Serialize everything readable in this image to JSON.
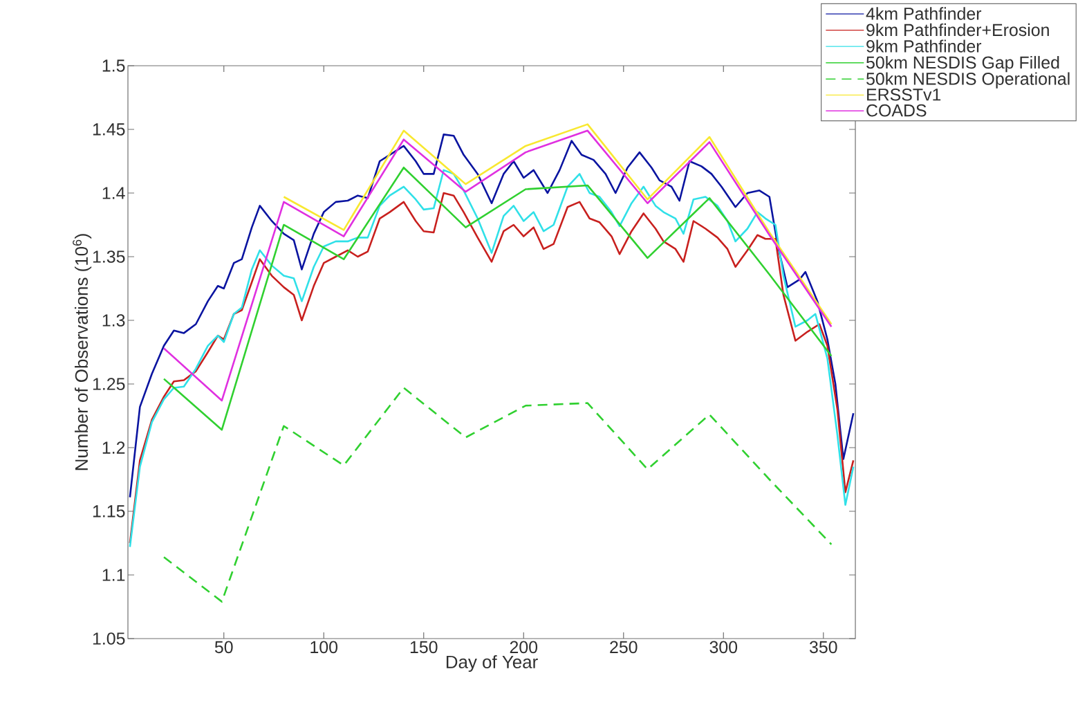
{
  "chart_data": {
    "type": "line",
    "xlabel": "Day of Year",
    "ylabel": "Number of Observations (10$^{6}$)",
    "xlim": [
      2,
      366
    ],
    "xticks": [
      50,
      100,
      150,
      200,
      250,
      300,
      350
    ],
    "ylim": [
      1.05,
      1.5
    ],
    "yticks": [
      1.05,
      1.1,
      1.15,
      1.2,
      1.25,
      1.3,
      1.35,
      1.4,
      1.45,
      1.5
    ],
    "legend": "top right",
    "series": [
      {
        "name": "4km Pathfinder",
        "color": "#0a14a0",
        "line_style": "solid",
        "x": [
          3,
          8,
          14,
          20,
          25,
          30,
          36,
          42,
          47,
          50,
          55,
          59,
          64,
          68,
          74,
          80,
          85,
          89,
          95,
          100,
          106,
          112,
          117,
          122,
          128,
          133,
          140,
          146,
          150,
          155,
          160,
          165,
          170,
          177,
          184,
          190,
          195,
          200,
          205,
          212,
          218,
          224,
          229,
          235,
          241,
          246,
          252,
          258,
          264,
          268,
          274,
          278,
          283,
          289,
          294,
          299,
          306,
          312,
          318,
          323,
          327,
          332,
          338,
          341,
          347,
          352,
          356,
          360,
          365
        ],
        "values": [
          1.161,
          1.232,
          1.258,
          1.28,
          1.292,
          1.29,
          1.297,
          1.315,
          1.327,
          1.325,
          1.345,
          1.348,
          1.373,
          1.39,
          1.378,
          1.368,
          1.363,
          1.34,
          1.368,
          1.385,
          1.393,
          1.394,
          1.398,
          1.396,
          1.425,
          1.43,
          1.437,
          1.425,
          1.415,
          1.415,
          1.446,
          1.445,
          1.43,
          1.415,
          1.392,
          1.415,
          1.425,
          1.412,
          1.418,
          1.4,
          1.418,
          1.441,
          1.43,
          1.426,
          1.415,
          1.4,
          1.42,
          1.432,
          1.42,
          1.41,
          1.405,
          1.394,
          1.425,
          1.421,
          1.415,
          1.405,
          1.389,
          1.4,
          1.402,
          1.397,
          1.36,
          1.326,
          1.332,
          1.338,
          1.315,
          1.285,
          1.25,
          1.191,
          1.227
        ]
      },
      {
        "name": "9km Pathfinder+Erosion",
        "color": "#c8201e",
        "line_style": "solid",
        "x": [
          3,
          8,
          14,
          20,
          25,
          30,
          36,
          42,
          47,
          50,
          55,
          59,
          64,
          68,
          74,
          80,
          85,
          89,
          95,
          100,
          106,
          112,
          117,
          122,
          128,
          133,
          140,
          146,
          150,
          155,
          160,
          165,
          170,
          177,
          184,
          190,
          195,
          200,
          205,
          210,
          215,
          222,
          228,
          233,
          238,
          244,
          248,
          254,
          260,
          266,
          270,
          276,
          280,
          285,
          291,
          297,
          302,
          306,
          312,
          317,
          321,
          326,
          330,
          336,
          342,
          348,
          352,
          357,
          361,
          365
        ],
        "values": [
          1.125,
          1.19,
          1.222,
          1.24,
          1.252,
          1.253,
          1.26,
          1.275,
          1.288,
          1.285,
          1.305,
          1.308,
          1.33,
          1.348,
          1.335,
          1.326,
          1.32,
          1.3,
          1.327,
          1.345,
          1.35,
          1.355,
          1.35,
          1.354,
          1.38,
          1.385,
          1.393,
          1.378,
          1.37,
          1.369,
          1.4,
          1.398,
          1.385,
          1.365,
          1.346,
          1.37,
          1.375,
          1.366,
          1.373,
          1.356,
          1.36,
          1.389,
          1.393,
          1.38,
          1.377,
          1.366,
          1.352,
          1.37,
          1.384,
          1.372,
          1.362,
          1.356,
          1.346,
          1.378,
          1.372,
          1.365,
          1.356,
          1.342,
          1.355,
          1.367,
          1.364,
          1.364,
          1.32,
          1.284,
          1.291,
          1.297,
          1.28,
          1.23,
          1.165,
          1.19
        ]
      },
      {
        "name": "9km Pathfinder",
        "color": "#30e0e8",
        "line_style": "solid",
        "x": [
          3,
          8,
          14,
          20,
          25,
          30,
          36,
          42,
          47,
          50,
          55,
          59,
          64,
          68,
          74,
          80,
          85,
          89,
          95,
          100,
          106,
          112,
          117,
          122,
          128,
          133,
          140,
          146,
          150,
          155,
          160,
          165,
          170,
          177,
          184,
          190,
          195,
          200,
          205,
          210,
          215,
          222,
          228,
          233,
          238,
          244,
          248,
          254,
          260,
          266,
          270,
          276,
          280,
          285,
          291,
          297,
          302,
          306,
          312,
          317,
          321,
          326,
          330,
          336,
          342,
          346,
          352,
          357,
          361,
          365
        ],
        "values": [
          1.122,
          1.185,
          1.22,
          1.238,
          1.247,
          1.248,
          1.262,
          1.28,
          1.288,
          1.283,
          1.305,
          1.31,
          1.34,
          1.355,
          1.343,
          1.335,
          1.333,
          1.315,
          1.342,
          1.358,
          1.362,
          1.362,
          1.365,
          1.365,
          1.39,
          1.398,
          1.405,
          1.395,
          1.387,
          1.388,
          1.418,
          1.415,
          1.402,
          1.38,
          1.353,
          1.382,
          1.39,
          1.378,
          1.385,
          1.37,
          1.375,
          1.405,
          1.415,
          1.4,
          1.397,
          1.385,
          1.374,
          1.392,
          1.405,
          1.39,
          1.385,
          1.38,
          1.368,
          1.395,
          1.397,
          1.39,
          1.378,
          1.362,
          1.372,
          1.385,
          1.38,
          1.375,
          1.335,
          1.295,
          1.3,
          1.305,
          1.27,
          1.21,
          1.155,
          1.185
        ]
      },
      {
        "name": "50km NESDIS Gap Filled",
        "color": "#30d030",
        "line_style": "solid",
        "x": [
          20,
          49,
          80,
          110,
          140,
          171,
          201,
          232,
          262,
          293,
          323,
          354
        ],
        "values": [
          1.254,
          1.214,
          1.375,
          1.348,
          1.42,
          1.373,
          1.403,
          1.406,
          1.349,
          1.396,
          1.336,
          1.272
        ]
      },
      {
        "name": "50km NESDIS Operational",
        "color": "#30d030",
        "line_style": "dashed",
        "x": [
          20,
          49,
          80,
          110,
          140,
          171,
          201,
          232,
          262,
          293,
          323,
          354
        ],
        "values": [
          1.114,
          1.079,
          1.217,
          1.186,
          1.247,
          1.208,
          1.233,
          1.235,
          1.183,
          1.226,
          1.175,
          1.124
        ]
      },
      {
        "name": "ERSSTv1",
        "color": "#f8e830",
        "line_style": "solid",
        "x": [
          80,
          110,
          140,
          171,
          201,
          232,
          262,
          293,
          323,
          354
        ],
        "values": [
          1.397,
          1.371,
          1.449,
          1.407,
          1.437,
          1.454,
          1.395,
          1.444,
          1.369,
          1.297
        ]
      },
      {
        "name": "COADS",
        "color": "#e030e0",
        "line_style": "solid",
        "x": [
          20,
          49,
          80,
          110,
          140,
          171,
          201,
          232,
          262,
          293,
          323,
          354
        ],
        "values": [
          1.278,
          1.237,
          1.393,
          1.366,
          1.442,
          1.401,
          1.432,
          1.449,
          1.392,
          1.44,
          1.367,
          1.295
        ]
      }
    ]
  }
}
